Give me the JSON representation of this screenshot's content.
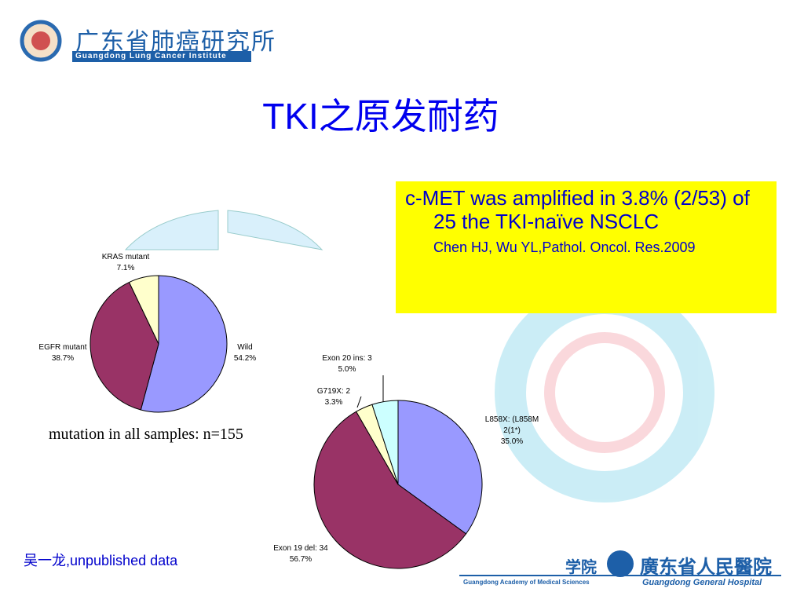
{
  "header": {
    "logo_title": "广东省肺癌研究所",
    "logo_subtitle": "Guangdong Lung Cancer Institute"
  },
  "title": "TKI之原发耐药",
  "note": {
    "text": "c-MET was amplified in 3.8% (2/53) of 25 the TKI-naïve NSCLC",
    "citation": "Chen HJ, Wu YL,Pathol. Oncol. Res.2009"
  },
  "caption": "mutation in all samples: n=155",
  "footnote": "吴一龙,unpublished data",
  "footer": {
    "academy": "学院",
    "academy_en": "Guangdong Academy of Medical Sciences",
    "hospital": "廣东省人民醫院",
    "hospital_en": "Guangdong General Hospital"
  },
  "chart_data": [
    {
      "type": "pie",
      "categories": [
        "Wild",
        "EGFR mutant",
        "KRAS mutant"
      ],
      "values": [
        54.2,
        38.7,
        7.1
      ],
      "value_labels": [
        "54.2%",
        "38.7%",
        "7.1%"
      ],
      "colors": [
        "#9999ff",
        "#993366",
        "#ffffcc"
      ]
    },
    {
      "type": "pie",
      "categories": [
        "L858X:  (L858M\n2(1*)",
        "Exon 19 del: 34",
        "G719X: 2",
        "Exon 20 ins: 3"
      ],
      "values": [
        35.0,
        56.7,
        3.3,
        5.0
      ],
      "value_labels": [
        "35.0%",
        "56.7%",
        "3.3%",
        "5.0%"
      ],
      "colors": [
        "#9999ff",
        "#993366",
        "#ffffcc",
        "#ccffff"
      ]
    }
  ]
}
